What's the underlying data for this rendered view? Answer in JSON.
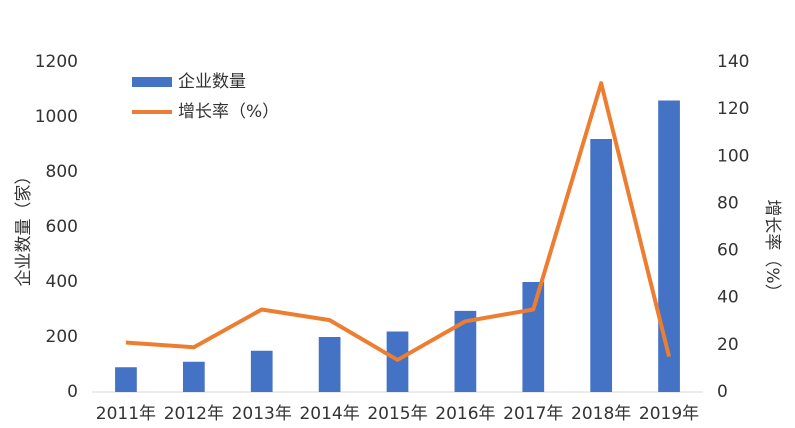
{
  "chart_data": {
    "type": "bar_line",
    "y_label": "企业数量（家）",
    "y2_label": "增长率（%）",
    "categories": [
      "2011年",
      "2012年",
      "2013年",
      "2014年",
      "2015年",
      "2016年",
      "2017年",
      "2018年",
      "2019年"
    ],
    "series": [
      {
        "name": "企业数量",
        "type": "bar",
        "color": "#4472c4",
        "values": [
          90,
          110,
          150,
          200,
          220,
          295,
          400,
          920,
          1060
        ]
      },
      {
        "name": "增长率（%）",
        "type": "line",
        "axis": "y2",
        "color": "#ed7d31",
        "values": [
          21,
          19,
          35,
          30.5,
          13.6,
          30,
          35,
          131,
          15
        ]
      }
    ],
    "ylim": [
      0,
      1200
    ],
    "yticks": [
      0,
      200,
      400,
      600,
      800,
      1000,
      1200
    ],
    "y2lim": [
      0,
      140
    ],
    "y2ticks": [
      0,
      20,
      40,
      60,
      80,
      100,
      120,
      140
    ],
    "grid": false,
    "legend": "upper left"
  }
}
